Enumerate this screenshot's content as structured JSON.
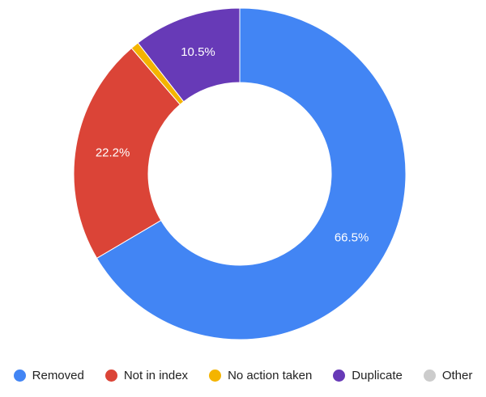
{
  "chart_data": {
    "type": "pie",
    "donut": true,
    "title": "",
    "legend_position": "bottom",
    "slices": [
      {
        "label": "Removed",
        "value": 66.5,
        "display": "66.5%",
        "color": "#4285f4"
      },
      {
        "label": "Not in index",
        "value": 22.2,
        "display": "22.2%",
        "color": "#db4437"
      },
      {
        "label": "No action taken",
        "value": 0.8,
        "display": "",
        "color": "#f4b400"
      },
      {
        "label": "Duplicate",
        "value": 10.5,
        "display": "10.5%",
        "color": "#673ab7"
      },
      {
        "label": "Other",
        "value": 0.0,
        "display": "",
        "color": "#cccccc"
      }
    ]
  }
}
